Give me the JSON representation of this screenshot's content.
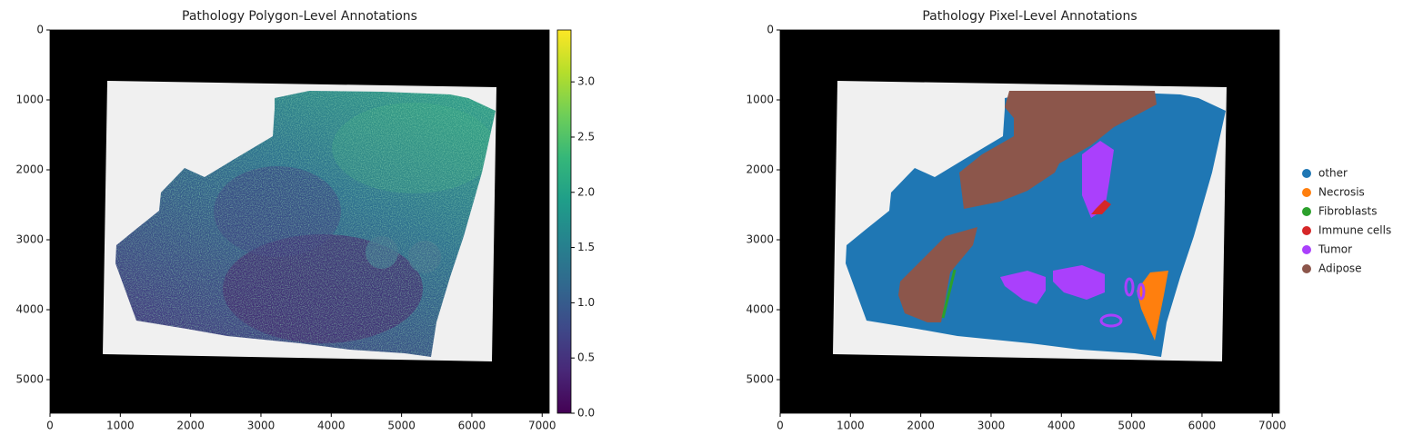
{
  "chart_data": [
    {
      "type": "image",
      "title": "Pathology Polygon-Level Annotations",
      "xlim": [
        0,
        7100
      ],
      "ylim": [
        5480,
        0
      ],
      "xticks": [
        0,
        1000,
        2000,
        3000,
        4000,
        5000,
        6000,
        7000
      ],
      "yticks": [
        0,
        1000,
        2000,
        3000,
        4000,
        5000
      ],
      "colorbar": {
        "clim": [
          0,
          3.47
        ],
        "colormap": "viridis",
        "ticks": [
          {
            "value": 0,
            "label": "0.0"
          },
          0.5,
          {
            "value": 1,
            "label": "1.0"
          },
          1.5,
          {
            "value": 2,
            "label": "2.0"
          },
          2.5,
          {
            "value": 3,
            "label": "3.0"
          }
        ]
      }
    },
    {
      "type": "image",
      "title": "Pathology Pixel-Level Annotations",
      "xlim": [
        0,
        7100
      ],
      "ylim": [
        5480,
        0
      ],
      "xticks": [
        0,
        1000,
        2000,
        3000,
        4000,
        5000,
        6000,
        7000
      ],
      "yticks": [
        0,
        1000,
        2000,
        3000,
        4000,
        5000
      ],
      "series": [
        {
          "name": "other",
          "color": "#1f77b4"
        },
        {
          "name": "Necrosis",
          "color": "#ff7f0e"
        },
        {
          "name": "Fibroblasts",
          "color": "#2ca02c"
        },
        {
          "name": "Immune cells",
          "color": "#d62728"
        },
        {
          "name": "Tumor",
          "color": "#aa40fc"
        },
        {
          "name": "Adipose",
          "color": "#8c564b"
        }
      ]
    }
  ]
}
